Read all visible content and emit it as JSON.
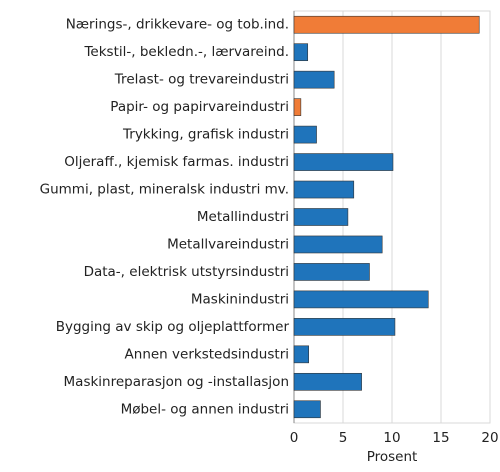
{
  "chart_data": {
    "type": "barh",
    "categories": [
      "Nærings-, drikkevare- og tob.ind.",
      "Tekstil-, bekledn.-, lærvareind.",
      "Trelast- og trevareindustri",
      "Papir- og papirvareindustri",
      "Trykking, grafisk industri",
      "Oljeraff., kjemisk farmas. industri",
      "Gummi, plast, mineralsk industri mv.",
      "Metallindustri",
      "Metallvareindustri",
      "Data-, elektrisk utstyrsindustri",
      "Maskinindustri",
      "Bygging av skip og oljeplattformer",
      "Annen verkstedsindustri",
      "Maskinreparasjon og -installasjon",
      "Møbel- og annen industri"
    ],
    "values": [
      18.9,
      1.4,
      4.1,
      0.7,
      2.3,
      10.1,
      6.1,
      5.5,
      9.0,
      7.7,
      13.7,
      10.3,
      1.5,
      6.9,
      2.7
    ],
    "colors": [
      "#f07c37",
      "#1f74bb",
      "#1f74bb",
      "#f07c37",
      "#1f74bb",
      "#1f74bb",
      "#1f74bb",
      "#1f74bb",
      "#1f74bb",
      "#1f74bb",
      "#1f74bb",
      "#1f74bb",
      "#1f74bb",
      "#1f74bb",
      "#1f74bb"
    ],
    "xlabel": "Prosent",
    "xlim": [
      0,
      20
    ],
    "xticks": [
      0,
      5,
      10,
      15,
      20
    ],
    "grid": true
  }
}
